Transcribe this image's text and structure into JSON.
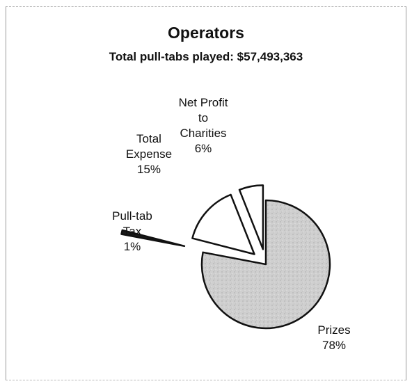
{
  "chart_data": {
    "type": "pie",
    "title": "Operators",
    "subtitle": "Total pull-tabs played: $57,493,363",
    "slices": [
      {
        "label_lines": [
          "Prizes",
          "78%"
        ],
        "value": 78
      },
      {
        "label_lines": [
          "Pull-tab",
          "Tax",
          "1%"
        ],
        "value": 1
      },
      {
        "label_lines": [
          "Total",
          "Expense",
          "15%"
        ],
        "value": 15
      },
      {
        "label_lines": [
          "Net Profit",
          "to",
          "Charities",
          "6%"
        ],
        "value": 6
      }
    ],
    "colors": {
      "prizes": "#cfcfcf",
      "tax": "#1a1a1a",
      "expense": "#ffffff",
      "charities": "#ffffff",
      "stroke": "#111111"
    }
  }
}
